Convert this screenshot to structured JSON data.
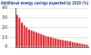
{
  "chart_data": {
    "type": "bar",
    "title": "Additional energy savings expected by 2020 (%)",
    "categories": [
      null,
      null,
      null,
      null,
      null,
      null,
      null,
      null,
      null,
      null,
      null,
      null,
      null,
      null,
      null,
      null,
      null,
      null,
      null,
      null,
      null,
      null,
      null,
      null,
      null,
      null,
      null,
      null,
      null,
      null
    ],
    "values": [
      33,
      30,
      25,
      22,
      20,
      18,
      17,
      16,
      15,
      14,
      13,
      12,
      11,
      10.5,
      10,
      9,
      8.5,
      8,
      7.5,
      7,
      6.5,
      6,
      5.5,
      5,
      4.5,
      4,
      3.5,
      3,
      2.5,
      2
    ],
    "color": "#e8262b",
    "ylim": [
      0,
      40
    ],
    "yticks": [
      0,
      10,
      20,
      30,
      40
    ],
    "grid": true,
    "tick_labels": "y"
  }
}
